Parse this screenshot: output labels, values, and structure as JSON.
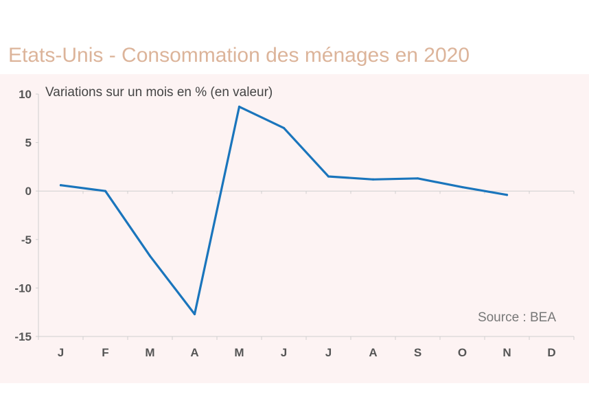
{
  "title": "Etats-Unis - Consommation des ménages en 2020",
  "chart_data": {
    "type": "line",
    "title": "Etats-Unis - Consommation des ménages en 2020",
    "subtitle": "Variations sur un mois en % (en valeur)",
    "source": "Source : BEA",
    "categories": [
      "J",
      "F",
      "M",
      "A",
      "M",
      "J",
      "J",
      "A",
      "S",
      "O",
      "N",
      "D"
    ],
    "series": [
      {
        "values": [
          0.6,
          0.0,
          -6.7,
          -12.7,
          8.7,
          6.5,
          1.5,
          1.2,
          1.3,
          0.4,
          -0.4,
          null
        ]
      }
    ],
    "yticks": [
      10,
      5,
      0,
      -5,
      -10,
      -15
    ],
    "ylim": [
      -15,
      10
    ],
    "xlabel": "",
    "ylabel": "",
    "grid": false,
    "colors": {
      "line": "#1a75bc",
      "panel": "#fdf3f3",
      "title": "#dcb49a",
      "axis": "#cfcfcf"
    }
  }
}
